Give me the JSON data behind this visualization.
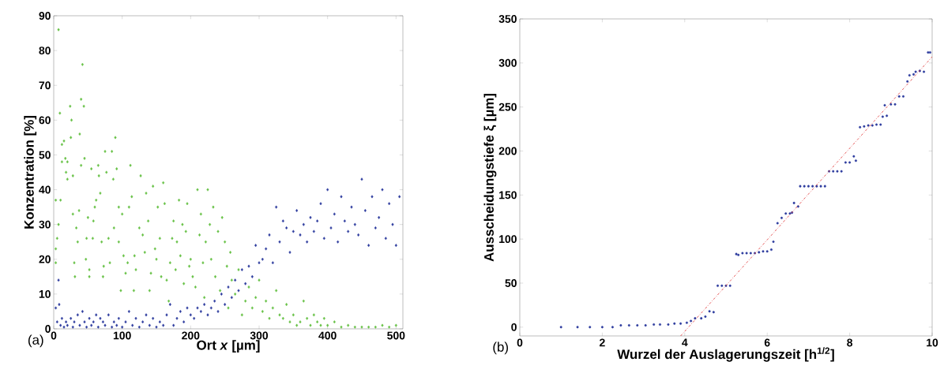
{
  "chart_data": [
    {
      "type": "scatter",
      "xlabel": "Ort *x* [µm]",
      "ylabel": "Konzentration [%]",
      "annotations": [
        "(a)"
      ],
      "xlim": [
        0,
        510
      ],
      "ylim": [
        0,
        90
      ],
      "xticks": [
        0,
        100,
        200,
        300,
        400,
        500
      ],
      "yticks": [
        0,
        10,
        20,
        30,
        40,
        50,
        60,
        70,
        80,
        90
      ],
      "marker": "diamond",
      "series": [
        {
          "color": "#66c144",
          "x": [
            3,
            3,
            3,
            5,
            7,
            7,
            9,
            10,
            12,
            12,
            15,
            17,
            18,
            20,
            20,
            24,
            25,
            26,
            28,
            28,
            30,
            31,
            33,
            35,
            37,
            38,
            40,
            40,
            42,
            44,
            45,
            47,
            48,
            50,
            52,
            52,
            55,
            57,
            58,
            60,
            62,
            65,
            66,
            68,
            70,
            72,
            73,
            75,
            77,
            80,
            82,
            85,
            87,
            88,
            90,
            92,
            95,
            95,
            98,
            100,
            102,
            105,
            108,
            110,
            112,
            114,
            117,
            118,
            120,
            125,
            127,
            130,
            133,
            135,
            138,
            140,
            142,
            145,
            148,
            150,
            152,
            155,
            157,
            160,
            162,
            165,
            168,
            170,
            173,
            175,
            178,
            180,
            183,
            185,
            188,
            190,
            193,
            195,
            198,
            200,
            203,
            207,
            210,
            213,
            215,
            218,
            220,
            222,
            225,
            228,
            230,
            233,
            236,
            240,
            243,
            246,
            250,
            253,
            255,
            258,
            260,
            265,
            270,
            275,
            280,
            285,
            290,
            295,
            300,
            305,
            310,
            315,
            320,
            325,
            330,
            335,
            340,
            345,
            350,
            355,
            360,
            365,
            370,
            375,
            380,
            385,
            390,
            395,
            400,
            410,
            420,
            430,
            440,
            450,
            460,
            470,
            480,
            490,
            500
          ],
          "values": [
            37,
            23,
            19,
            26,
            86,
            30,
            62,
            37,
            53,
            48,
            54,
            49,
            45,
            43,
            48,
            64,
            55,
            60,
            44,
            33,
            19,
            15,
            29,
            25,
            34,
            56,
            66,
            47,
            76,
            64,
            49,
            20,
            26,
            32,
            17,
            15,
            46,
            26,
            31,
            35,
            37,
            47,
            44,
            39,
            25,
            15,
            18,
            51,
            45,
            26,
            19,
            51,
            43,
            29,
            55,
            46,
            35,
            25,
            11,
            33,
            21,
            16,
            19,
            35,
            47,
            38,
            11,
            21,
            17,
            29,
            44,
            27,
            22,
            39,
            31,
            11,
            16,
            41,
            23,
            20,
            35,
            26,
            15,
            42,
            36,
            14,
            8,
            19,
            26,
            31,
            17,
            25,
            37,
            21,
            30,
            13,
            28,
            36,
            18,
            20,
            15,
            12,
            40,
            27,
            33,
            19,
            9,
            25,
            40,
            30,
            20,
            35,
            15,
            28,
            11,
            32,
            25,
            18,
            6,
            22,
            14,
            10,
            17,
            4,
            8,
            12,
            6,
            9,
            14,
            5,
            8,
            3,
            6,
            11,
            4,
            3,
            7,
            2,
            4,
            1,
            2,
            8,
            3,
            1,
            4,
            2,
            1,
            3,
            1,
            2,
            0.5,
            1,
            0.5,
            0.5,
            0.5,
            0.5,
            1,
            0.5,
            1
          ]
        },
        {
          "color": "#2e3c9e",
          "x": [
            3,
            5,
            7,
            8,
            10,
            12,
            15,
            18,
            20,
            25,
            28,
            30,
            35,
            38,
            42,
            45,
            48,
            52,
            55,
            58,
            62,
            65,
            68,
            72,
            75,
            80,
            85,
            88,
            92,
            95,
            100,
            105,
            110,
            115,
            120,
            125,
            130,
            135,
            140,
            145,
            150,
            155,
            160,
            165,
            170,
            175,
            180,
            185,
            190,
            195,
            200,
            205,
            210,
            215,
            220,
            225,
            230,
            235,
            240,
            245,
            250,
            255,
            260,
            265,
            270,
            275,
            280,
            285,
            290,
            295,
            300,
            305,
            310,
            315,
            320,
            325,
            330,
            335,
            340,
            345,
            350,
            355,
            360,
            365,
            370,
            375,
            380,
            385,
            390,
            395,
            400,
            405,
            410,
            415,
            420,
            425,
            430,
            435,
            440,
            445,
            450,
            455,
            460,
            465,
            470,
            475,
            480,
            485,
            490,
            495,
            500,
            505
          ],
          "values": [
            6,
            2,
            14,
            7,
            1,
            3,
            0.5,
            2,
            1,
            3,
            0.5,
            2,
            4,
            1,
            5,
            2,
            0.5,
            3,
            1,
            2,
            4,
            0.5,
            3,
            2,
            1,
            4,
            0.5,
            2,
            1,
            3,
            0.5,
            2,
            5,
            1,
            3,
            0.5,
            2,
            4,
            1,
            3,
            0.5,
            2,
            1,
            4,
            7,
            1,
            3,
            5,
            2,
            6,
            4,
            3,
            6,
            5,
            7,
            4,
            6,
            8,
            5,
            10,
            7,
            12,
            9,
            14,
            11,
            17,
            13,
            18,
            15,
            24,
            19,
            20,
            23,
            27,
            19,
            35,
            25,
            31,
            29,
            22,
            28,
            34,
            27,
            30,
            25,
            32,
            28,
            31,
            36,
            26,
            40,
            29,
            33,
            25,
            38,
            31,
            28,
            35,
            30,
            27,
            43,
            34,
            24,
            38,
            29,
            32,
            40,
            26,
            36,
            30,
            24,
            38
          ]
        }
      ]
    },
    {
      "type": "scatter",
      "xlabel": "Wurzel der Auslagerungszeit [h$^{1/2}$]",
      "ylabel": "Ausscheidungstiefe ξ [µm]",
      "annotations": [
        "(b)"
      ],
      "xlim": [
        0,
        10
      ],
      "ylim": [
        -10,
        350
      ],
      "xticks": [
        0,
        2,
        4,
        6,
        8,
        10
      ],
      "yticks": [
        0,
        50,
        100,
        150,
        200,
        250,
        300,
        350
      ],
      "marker": "circle",
      "series": [
        {
          "color": "#2e3c9e",
          "x": [
            1,
            1.4,
            1.7,
            2,
            2.25,
            2.45,
            2.65,
            2.85,
            3.05,
            3.25,
            3.4,
            3.6,
            3.75,
            3.9,
            4.05,
            4.15,
            4.25,
            4.4,
            4.5,
            4.6,
            4.7,
            4.8,
            4.9,
            5.0,
            5.1,
            5.25,
            5.3,
            5.4,
            5.5,
            5.6,
            5.7,
            5.8,
            5.9,
            6.0,
            6.1,
            6.15,
            6.25,
            6.35,
            6.45,
            6.55,
            6.6,
            6.65,
            6.75,
            6.8,
            6.9,
            7.0,
            7.1,
            7.2,
            7.3,
            7.4,
            7.5,
            7.6,
            7.7,
            7.8,
            7.9,
            8.0,
            8.1,
            8.15,
            8.25,
            8.35,
            8.45,
            8.55,
            8.65,
            8.75,
            8.8,
            8.85,
            8.9,
            9.0,
            9.1,
            9.2,
            9.3,
            9.4,
            9.45,
            9.55,
            9.6,
            9.7,
            9.8,
            9.9,
            9.95
          ],
          "values": [
            0,
            0,
            0,
            0,
            0,
            2,
            2,
            2,
            2,
            3,
            3,
            3,
            4,
            4,
            5,
            7,
            10,
            10,
            12,
            18,
            17,
            47,
            47,
            47,
            47,
            83,
            82,
            84,
            84,
            84,
            84,
            85,
            86,
            86,
            88,
            97,
            118,
            124,
            129,
            129,
            130,
            141,
            137,
            160,
            160,
            160,
            160,
            160,
            160,
            160,
            177,
            177,
            177,
            177,
            187,
            187,
            194,
            189,
            227,
            228,
            229,
            229,
            230,
            230,
            239,
            252,
            240,
            253,
            253,
            262,
            262,
            279,
            286,
            287,
            290,
            291,
            290,
            312,
            312
          ]
        },
        {
          "type": "line",
          "color": "#e03030",
          "line_style": "dashed",
          "marker": "none",
          "x": [
            3.9,
            10
          ],
          "values": [
            -10,
            307
          ]
        }
      ]
    }
  ]
}
